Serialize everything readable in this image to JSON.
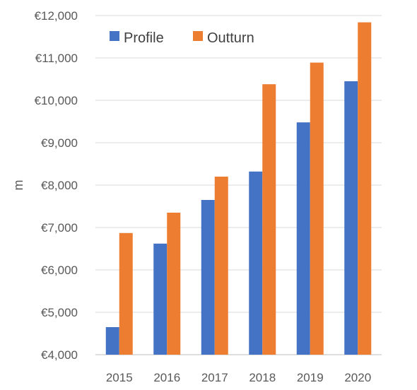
{
  "chart_data": {
    "type": "bar",
    "categories": [
      "2015",
      "2016",
      "2017",
      "2018",
      "2019",
      "2020"
    ],
    "series": [
      {
        "name": "Profile",
        "color": "#4472C4",
        "values": [
          4650,
          6620,
          7650,
          8320,
          9480,
          10450
        ]
      },
      {
        "name": "Outturn",
        "color": "#ED7D31",
        "values": [
          6870,
          7350,
          8200,
          10380,
          10890,
          11840
        ]
      }
    ],
    "ylabel": "m",
    "ylim": [
      4000,
      12000
    ],
    "y_ticks": [
      4000,
      5000,
      6000,
      7000,
      8000,
      9000,
      10000,
      11000,
      12000
    ],
    "y_tick_labels": [
      "€4,000",
      "€5,000",
      "€6,000",
      "€7,000",
      "€8,000",
      "€9,000",
      "€10,000",
      "€11,000",
      "€12,000"
    ],
    "grid": true,
    "legend_position": "top-left"
  }
}
